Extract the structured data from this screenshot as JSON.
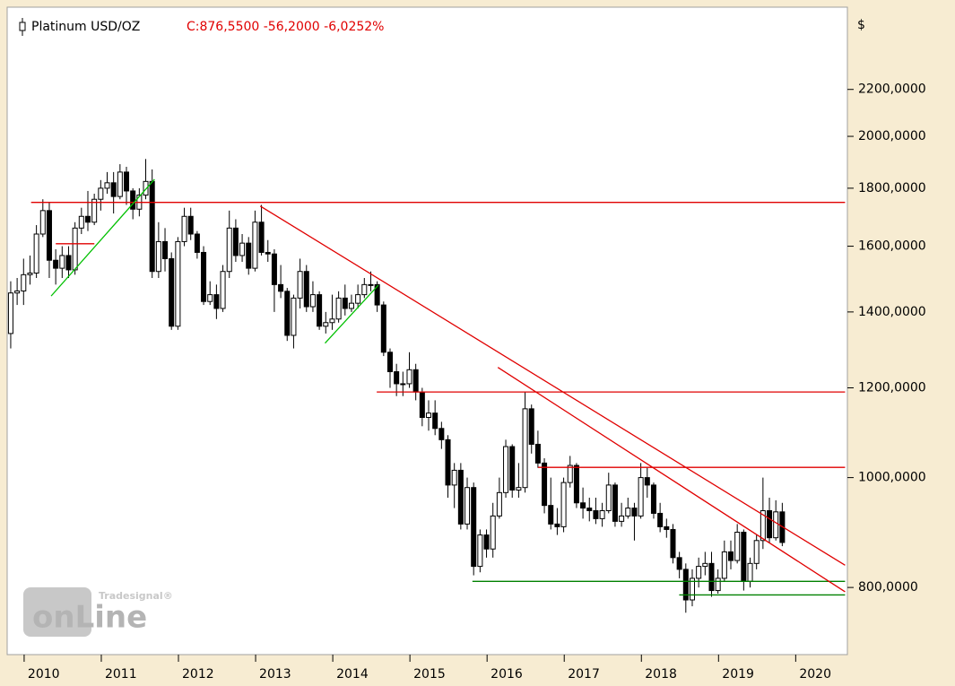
{
  "chart_data": {
    "type": "candlestick",
    "title": "Platinum USD/OZ",
    "quote": "C:876,5500 -56,2000 -6,0252%",
    "currency": "$",
    "logo": {
      "brand": "Tradesignal®",
      "text": "onLine"
    },
    "log_scale": true,
    "grid": false,
    "up_color": "#ffffff",
    "down_color": "#000000",
    "xlim": [
      2009.78,
      2020.67
    ],
    "xticks": [
      2010,
      2011,
      2012,
      2013,
      2014,
      2015,
      2016,
      2017,
      2018,
      2019,
      2020
    ],
    "ylim": [
      698,
      2600
    ],
    "yticks": [
      {
        "value": 800,
        "label": "800,0000"
      },
      {
        "value": 1000,
        "label": "1000,0000"
      },
      {
        "value": 1200,
        "label": "1200,0000"
      },
      {
        "value": 1400,
        "label": "1400,0000"
      },
      {
        "value": 1600,
        "label": "1600,0000"
      },
      {
        "value": 1800,
        "label": "1800,0000"
      },
      {
        "value": 2000,
        "label": "2000,0000"
      },
      {
        "value": 2200,
        "label": "2200,0000"
      }
    ],
    "open": [
      1340,
      1455,
      1461,
      1510,
      1515,
      1640,
      1720,
      1555,
      1530,
      1570,
      1525,
      1660,
      1700,
      1680,
      1760,
      1800,
      1820,
      1770,
      1860,
      1790,
      1725,
      1775,
      1825,
      1520,
      1615,
      1560,
      1360,
      1615,
      1700,
      1640,
      1580,
      1430,
      1450,
      1410,
      1520,
      1660,
      1570,
      1610,
      1530,
      1680,
      1580,
      1575,
      1480,
      1460,
      1335,
      1440,
      1520,
      1415,
      1450,
      1360,
      1370,
      1380,
      1440,
      1410,
      1425,
      1450,
      1480,
      1480,
      1420,
      1290,
      1240,
      1210,
      1210,
      1245,
      1190,
      1130,
      1140,
      1105,
      1080,
      985,
      1015,
      910,
      980,
      835,
      890,
      865,
      925,
      970,
      1065,
      975,
      980,
      1150,
      1070,
      1030,
      945,
      910,
      905,
      990,
      1025,
      950,
      940,
      935,
      920,
      935,
      985,
      915,
      925,
      940,
      925,
      1000,
      985,
      930,
      905,
      900,
      850,
      830,
      780,
      815,
      835,
      840,
      795,
      815,
      860,
      845,
      895,
      810,
      840,
      880,
      935,
      885,
      932.75
    ],
    "high": [
      1490,
      1500,
      1560,
      1570,
      1670,
      1760,
      1750,
      1590,
      1600,
      1600,
      1680,
      1730,
      1790,
      1780,
      1830,
      1860,
      1860,
      1890,
      1880,
      1800,
      1800,
      1910,
      1870,
      1680,
      1660,
      1580,
      1630,
      1730,
      1730,
      1650,
      1600,
      1490,
      1480,
      1540,
      1720,
      1690,
      1640,
      1630,
      1720,
      1740,
      1620,
      1590,
      1540,
      1470,
      1450,
      1560,
      1540,
      1490,
      1460,
      1400,
      1450,
      1460,
      1480,
      1450,
      1480,
      1500,
      1520,
      1490,
      1430,
      1300,
      1260,
      1240,
      1290,
      1260,
      1200,
      1170,
      1170,
      1120,
      1090,
      1030,
      1030,
      1000,
      990,
      900,
      900,
      950,
      1000,
      1080,
      1070,
      1030,
      1190,
      1160,
      1100,
      1040,
      1000,
      940,
      1000,
      1045,
      1030,
      980,
      960,
      960,
      950,
      1010,
      990,
      950,
      960,
      950,
      1030,
      1020,
      990,
      950,
      920,
      910,
      860,
      840,
      830,
      850,
      860,
      860,
      830,
      880,
      880,
      910,
      900,
      850,
      890,
      1000,
      960,
      955,
      950
    ],
    "low": [
      1300,
      1420,
      1420,
      1480,
      1500,
      1630,
      1500,
      1480,
      1500,
      1500,
      1510,
      1640,
      1650,
      1670,
      1720,
      1780,
      1710,
      1760,
      1740,
      1690,
      1700,
      1760,
      1500,
      1500,
      1520,
      1350,
      1350,
      1600,
      1620,
      1560,
      1420,
      1420,
      1380,
      1400,
      1500,
      1550,
      1550,
      1510,
      1520,
      1570,
      1550,
      1400,
      1440,
      1320,
      1300,
      1410,
      1400,
      1400,
      1350,
      1340,
      1350,
      1370,
      1390,
      1400,
      1410,
      1440,
      1460,
      1400,
      1280,
      1200,
      1180,
      1180,
      1200,
      1170,
      1110,
      1100,
      1090,
      1060,
      960,
      940,
      900,
      900,
      820,
      825,
      850,
      850,
      920,
      960,
      960,
      960,
      970,
      1050,
      1020,
      930,
      900,
      890,
      895,
      980,
      940,
      920,
      915,
      910,
      905,
      930,
      905,
      905,
      920,
      880,
      920,
      960,
      920,
      895,
      885,
      840,
      815,
      760,
      770,
      800,
      820,
      785,
      790,
      810,
      830,
      840,
      795,
      800,
      830,
      865,
      875,
      880,
      870
    ],
    "close": [
      1455,
      1461,
      1510,
      1515,
      1640,
      1720,
      1555,
      1530,
      1570,
      1525,
      1660,
      1700,
      1680,
      1760,
      1800,
      1820,
      1770,
      1860,
      1790,
      1725,
      1775,
      1825,
      1520,
      1615,
      1560,
      1360,
      1615,
      1700,
      1640,
      1580,
      1430,
      1450,
      1410,
      1520,
      1660,
      1570,
      1610,
      1530,
      1680,
      1580,
      1575,
      1480,
      1460,
      1335,
      1440,
      1520,
      1415,
      1450,
      1360,
      1370,
      1380,
      1440,
      1410,
      1425,
      1450,
      1480,
      1480,
      1420,
      1290,
      1240,
      1210,
      1210,
      1245,
      1190,
      1130,
      1140,
      1105,
      1080,
      985,
      1015,
      910,
      980,
      835,
      890,
      865,
      925,
      970,
      1065,
      975,
      980,
      1150,
      1070,
      1030,
      945,
      910,
      905,
      990,
      1025,
      950,
      940,
      935,
      920,
      935,
      985,
      915,
      925,
      940,
      925,
      1000,
      985,
      930,
      905,
      900,
      850,
      830,
      780,
      815,
      835,
      840,
      795,
      815,
      860,
      845,
      895,
      810,
      840,
      880,
      935,
      885,
      932.75,
      876.55
    ],
    "trendlines": [
      {
        "color": "#e00000",
        "x": [
          2010.09,
          2020.64
        ],
        "y": [
          1749,
          1749
        ]
      },
      {
        "color": "#e00000",
        "x": [
          2010.41,
          2010.91
        ],
        "y": [
          1608,
          1608
        ]
      },
      {
        "color": "#e00000",
        "x": [
          2014.57,
          2020.64
        ],
        "y": [
          1190,
          1190
        ]
      },
      {
        "color": "#e00000",
        "x": [
          2016.66,
          2020.64
        ],
        "y": [
          1021,
          1021
        ]
      },
      {
        "color": "#008000",
        "x": [
          2015.81,
          2020.64
        ],
        "y": [
          810,
          810
        ]
      },
      {
        "color": "#008000",
        "x": [
          2018.49,
          2020.64
        ],
        "y": [
          788,
          788
        ]
      },
      {
        "color": "#e00000",
        "x": [
          2013.06,
          2020.64
        ],
        "y": [
          1736,
          837
        ]
      },
      {
        "color": "#e00000",
        "x": [
          2016.14,
          2020.64
        ],
        "y": [
          1251,
          793
        ]
      },
      {
        "color": "#00c000",
        "x": [
          2010.35,
          2011.69
        ],
        "y": [
          1446,
          1833
        ]
      },
      {
        "color": "#00c000",
        "x": [
          2013.9,
          2014.59
        ],
        "y": [
          1314,
          1478
        ]
      }
    ]
  }
}
